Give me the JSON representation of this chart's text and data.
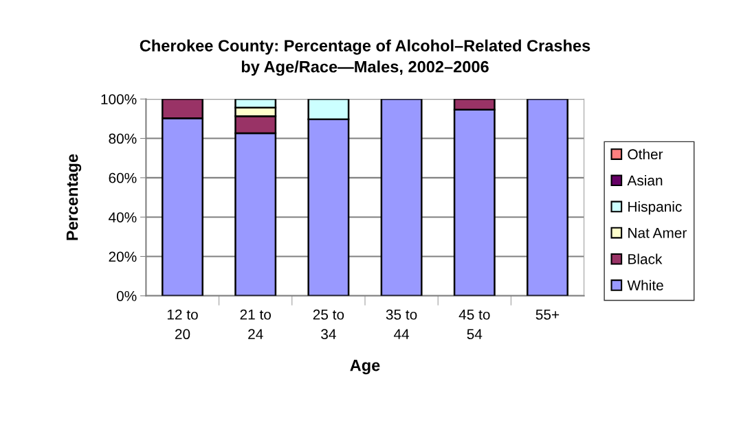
{
  "chart_data": {
    "type": "bar",
    "title": "Cherokee County: Percentage of Alcohol–Related Crashes\nby Age/Race—Males, 2002–2006",
    "xlabel": "Age",
    "ylabel": "Percentage",
    "categories": [
      "12 to\n20",
      "21 to\n24",
      "25 to\n34",
      "35 to\n44",
      "45 to\n54",
      "55+"
    ],
    "stacked": true,
    "series": [
      {
        "name": "White",
        "color": "#9999ff",
        "values": [
          90.2,
          82.6,
          89.7,
          100,
          94.6,
          100
        ]
      },
      {
        "name": "Black",
        "color": "#993366",
        "values": [
          9.8,
          8.7,
          0,
          0,
          5.4,
          0
        ]
      },
      {
        "name": "Nat Amer",
        "color": "#ffffcc",
        "values": [
          0,
          4.3,
          0,
          0,
          0,
          0
        ]
      },
      {
        "name": "Hispanic",
        "color": "#ccffff",
        "values": [
          0,
          4.4,
          10.3,
          0,
          0,
          0
        ]
      },
      {
        "name": "Asian",
        "color": "#660066",
        "values": [
          0,
          0,
          0,
          0,
          0,
          0
        ]
      },
      {
        "name": "Other",
        "color": "#ff8080",
        "values": [
          0,
          0,
          0,
          0,
          0,
          0
        ]
      }
    ],
    "ylim": [
      0,
      100
    ],
    "yticks": [
      {
        "value": 0,
        "label": "0%"
      },
      {
        "value": 20,
        "label": "20%"
      },
      {
        "value": 40,
        "label": "40%"
      },
      {
        "value": 60,
        "label": "60%"
      },
      {
        "value": 80,
        "label": "80%"
      },
      {
        "value": 100,
        "label": "100%"
      }
    ],
    "grid": "y",
    "legend": "right"
  }
}
